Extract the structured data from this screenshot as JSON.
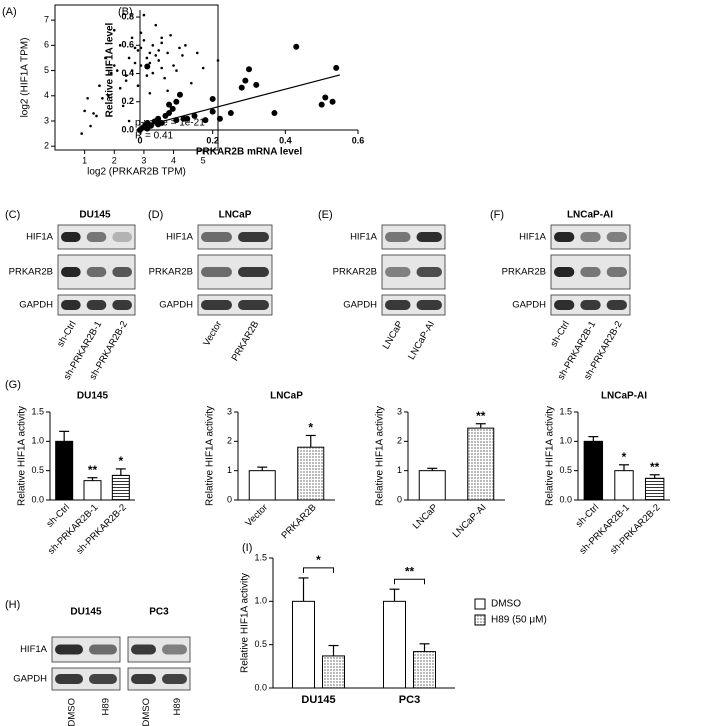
{
  "panel_labels": [
    "(A)",
    "(B)",
    "(C)",
    "(D)",
    "(E)",
    "(F)",
    "(G)",
    "(H)",
    "(I)"
  ],
  "chart_data": [
    {
      "type": "scatter",
      "frame": true,
      "bold_labels": false,
      "color": "#000000",
      "xlabel": "log2 (PRKAR2B TPM)",
      "ylabel": "log2 (HIF1A TPM)",
      "xlim": [
        0,
        5.5
      ],
      "ylim": [
        1.85,
        7.6
      ],
      "xticks": [
        1,
        2,
        3,
        4,
        5
      ],
      "yticks": [
        2,
        3,
        4,
        5,
        6,
        7
      ],
      "annotations": [
        "p-value = 1e-21",
        "R = 0.41"
      ],
      "x": [
        2.1,
        2.5,
        2.8,
        3.0,
        3.2,
        3.4,
        3.6,
        3.1,
        2.9,
        2.7,
        3.3,
        3.5,
        3.8,
        4.0,
        2.4,
        2.2,
        1.9,
        1.6,
        1.4,
        1.2,
        1.0,
        0.9,
        1.8,
        2.0,
        2.6,
        3.7,
        4.2,
        4.4,
        4.6,
        5.0,
        5.5,
        3.9,
        3.0,
        2.8,
        3.2,
        3.4,
        2.3,
        2.6,
        3.1,
        2.9,
        3.6,
        3.3,
        1.5,
        1.1,
        2.0,
        2.5,
        3.5,
        4.1,
        4.3,
        2.7,
        3.0,
        3.8,
        1.7,
        2.2,
        3.2,
        2.4,
        3.6,
        4.8,
        1.3,
        2.9
      ],
      "y": [
        5.0,
        5.5,
        5.8,
        6.2,
        5.3,
        5.6,
        5.1,
        4.8,
        6.5,
        5.9,
        6.0,
        5.4,
        5.7,
        5.2,
        4.6,
        4.3,
        4.9,
        3.9,
        3.2,
        2.8,
        3.4,
        2.5,
        4.0,
        5.2,
        6.3,
        4.7,
        5.9,
        6.0,
        4.5,
        5.1,
        5.4,
        6.4,
        7.2,
        4.4,
        4.1,
        6.8,
        3.6,
        5.0,
        5.5,
        5.2,
        6.1,
        4.9,
        4.4,
        3.9,
        6.6,
        3.0,
        5.8,
        5.0,
        5.6,
        5.3,
        2.9,
        4.2,
        5.5,
        6.0,
        5.7,
        4.8,
        6.3,
        5.7,
        3.3,
        5.9
      ]
    },
    {
      "type": "scatter",
      "frame": false,
      "bold_labels": true,
      "color": "#000000",
      "xlabel": "PRKAR2B mRNA level",
      "ylabel": "Relative HIF1A level",
      "xlim": [
        0,
        0.6
      ],
      "ylim": [
        0,
        0.85
      ],
      "xticks": [
        0,
        0.2,
        0.4,
        0.6
      ],
      "yticks": [
        {
          "value": 0,
          "label": "0.0"
        },
        0.2,
        0.4,
        0.6,
        0.8
      ],
      "fit": {
        "x": [
          0,
          0.55
        ],
        "y": [
          0.02,
          0.39
        ]
      },
      "x": [
        0.0,
        0.01,
        0.02,
        0.03,
        0.04,
        0.05,
        0.06,
        0.07,
        0.08,
        0.09,
        0.1,
        0.1,
        0.11,
        0.12,
        0.02,
        0.05,
        0.08,
        0.13,
        0.15,
        0.18,
        0.2,
        0.22,
        0.25,
        0.28,
        0.29,
        0.3,
        0.32,
        0.37,
        0.43,
        0.5,
        0.51,
        0.53,
        0.54,
        0.02,
        0.2
      ],
      "y": [
        0.0,
        0.02,
        0.05,
        0.03,
        0.06,
        0.08,
        0.05,
        0.1,
        0.12,
        0.15,
        0.2,
        0.07,
        0.25,
        0.08,
        0.45,
        0.04,
        0.18,
        0.08,
        0.1,
        0.07,
        0.22,
        0.08,
        0.12,
        0.3,
        0.35,
        0.43,
        0.32,
        0.12,
        0.59,
        0.18,
        0.23,
        0.2,
        0.44,
        0.01,
        0.13
      ]
    },
    {
      "type": "bar",
      "title": "DU145",
      "ylabel": "Relative HIF1A activity",
      "categories": [
        "sh-Ctrl",
        "sh-PRKAR2B-1",
        "sh-PRKAR2B-2"
      ],
      "values": [
        1.0,
        0.33,
        0.42
      ],
      "errors": [
        0.17,
        0.05,
        0.11
      ],
      "colors": [
        "#000000",
        "#ffffff",
        "#ffffff"
      ],
      "patterns": [
        null,
        null,
        "lines"
      ],
      "significance": [
        null,
        "**",
        "*"
      ],
      "ylim": [
        0,
        1.5
      ],
      "yticks": [
        {
          "value": 0,
          "label": "0.0"
        },
        0.5,
        {
          "value": 1,
          "label": "1.0"
        },
        1.5
      ]
    },
    {
      "type": "bar",
      "title": "LNCaP",
      "ylabel": "Relative HIF1A activity",
      "categories": [
        "Vector",
        "PRKAR2B"
      ],
      "values": [
        1.0,
        1.8
      ],
      "errors": [
        0.12,
        0.4
      ],
      "colors": [
        "#ffffff",
        "#bbbbbb"
      ],
      "patterns": [
        null,
        "dots"
      ],
      "significance": [
        null,
        "*"
      ],
      "ylim": [
        0,
        3
      ],
      "yticks": [
        0,
        1,
        2,
        3
      ]
    },
    {
      "type": "bar",
      "ylabel": "Relative HIF1A activity",
      "categories": [
        "LNCaP",
        "LNCaP-AI"
      ],
      "values": [
        1.0,
        2.45
      ],
      "errors": [
        0.08,
        0.15
      ],
      "colors": [
        "#ffffff",
        "#bbbbbb"
      ],
      "patterns": [
        null,
        "dots"
      ],
      "significance": [
        null,
        "**"
      ],
      "ylim": [
        0,
        3
      ],
      "yticks": [
        0,
        1,
        2,
        3
      ]
    },
    {
      "type": "bar",
      "title": "LNCaP-AI",
      "ylabel": "Relative HIF1A activity",
      "categories": [
        "sh-Ctrl",
        "sh-PRKAR2B-1",
        "sh-PRKAR2B-2"
      ],
      "values": [
        1.0,
        0.5,
        0.37
      ],
      "errors": [
        0.08,
        0.1,
        0.06
      ],
      "colors": [
        "#000000",
        "#ffffff",
        "#ffffff"
      ],
      "patterns": [
        null,
        null,
        "lines"
      ],
      "significance": [
        null,
        "*",
        "**"
      ],
      "ylim": [
        0,
        1.5
      ],
      "yticks": [
        {
          "value": 0,
          "label": "0.0"
        },
        0.5,
        {
          "value": 1,
          "label": "1.0"
        },
        1.5
      ]
    },
    {
      "type": "grouped_bar",
      "ylabel": "Relative HIF1A activity",
      "categories": [
        "DU145",
        "PC3"
      ],
      "series": [
        {
          "name": "DMSO",
          "color": "#ffffff",
          "pattern": null,
          "values": [
            1.0,
            1.0
          ],
          "errors": [
            0.27,
            0.14
          ]
        },
        {
          "name": "H89 (50 μM)",
          "color": "#bbbbbb",
          "pattern": "dots",
          "values": [
            0.37,
            0.42
          ],
          "errors": [
            0.12,
            0.09
          ]
        }
      ],
      "significance": [
        "*",
        "**"
      ],
      "legend": "right",
      "ylim": [
        0,
        1.5
      ],
      "yticks": [
        {
          "value": 0,
          "label": "0.0"
        },
        0.5,
        {
          "value": 1,
          "label": "1.0"
        },
        1.5
      ]
    }
  ],
  "blots": [
    {
      "title": "DU145",
      "proteins": [
        "HIF1A",
        "PRKAR2B",
        "GAPDH"
      ],
      "lanes": [
        "sh-Ctrl",
        "sh-PRKAR2B-1",
        "sh-PRKAR2B-2"
      ]
    },
    {
      "title": "LNCaP",
      "proteins": [
        "HIF1A",
        "PRKAR2B",
        "GAPDH"
      ],
      "lanes": [
        "Vector",
        "PRKAR2B"
      ]
    },
    {
      "proteins": [
        "HIF1A",
        "PRKAR2B",
        "GAPDH"
      ],
      "lanes": [
        "LNCaP",
        "LNCaP-AI"
      ]
    },
    {
      "title": "LNCaP-AI",
      "proteins": [
        "HIF1A",
        "PRKAR2B",
        "GAPDH"
      ],
      "lanes": [
        "sh-Ctrl",
        "sh-PRKAR2B-1",
        "sh-PRKAR2B-2"
      ]
    },
    {
      "proteins": [
        "HIF1A",
        "GAPDH"
      ],
      "groups": [
        {
          "title": "DU145",
          "lanes": [
            "DMSO",
            "H89"
          ]
        },
        {
          "title": "PC3",
          "lanes": [
            "DMSO",
            "H89"
          ]
        }
      ]
    }
  ]
}
